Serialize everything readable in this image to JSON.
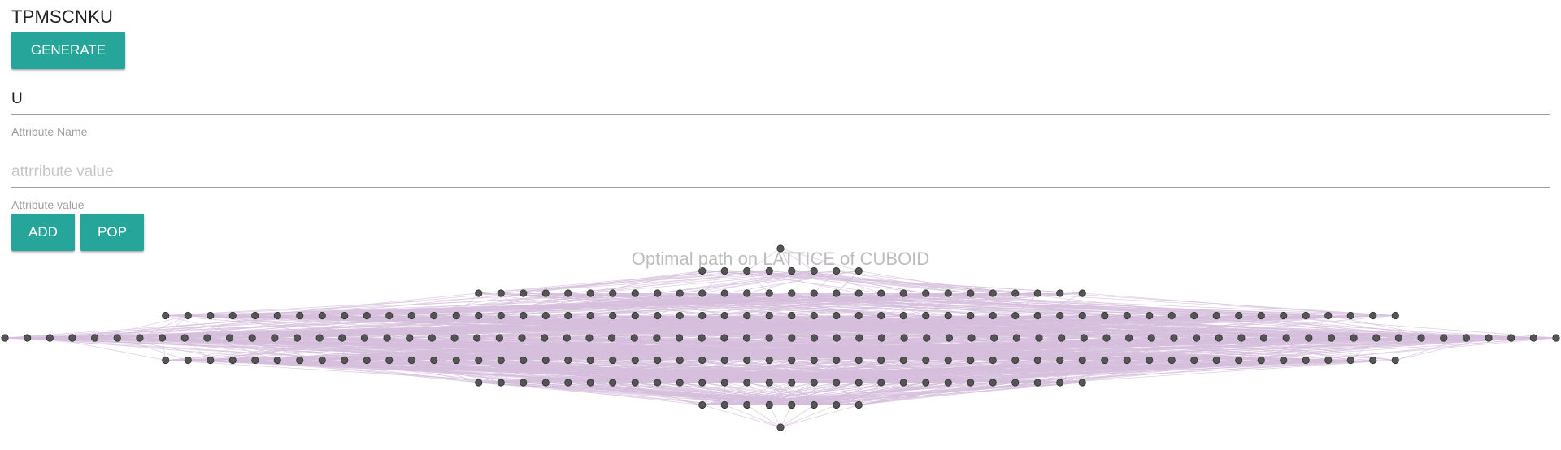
{
  "header": {
    "title": "TPMSCNKU"
  },
  "buttons": {
    "generate": "GENERATE",
    "add": "ADD",
    "pop": "POP"
  },
  "form": {
    "attribute_name": {
      "value": "U",
      "label": "Attribute Name"
    },
    "attribute_value": {
      "value": "",
      "placeholder": "attrribute value",
      "label": "Attribute value"
    }
  },
  "graph": {
    "title": "Optimal path on LATTICE of CUBOID",
    "node_color": "#555555",
    "edge_color": "#d6bfdc",
    "level_node_counts": [
      1,
      8,
      28,
      56,
      70,
      56,
      28,
      8,
      1
    ]
  }
}
